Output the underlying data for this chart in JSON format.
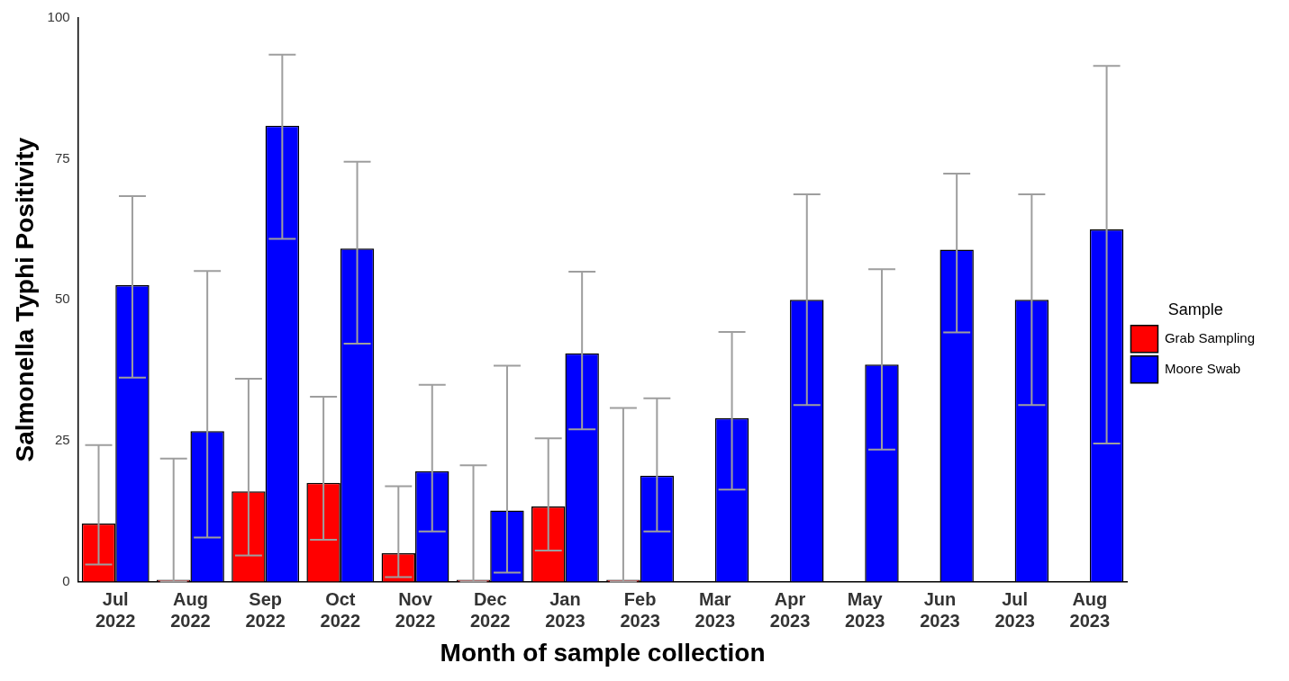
{
  "chart_data": {
    "type": "bar",
    "xlabel": "Month of sample collection",
    "ylabel": "Salmonella Typhi Positivity",
    "legend_title": "Sample",
    "legend": "right",
    "grid": false,
    "categories": [
      "Jul 2022",
      "Aug 2022",
      "Sep 2022",
      "Oct 2022",
      "Nov 2022",
      "Dec 2022",
      "Jan 2023",
      "Feb 2023",
      "Mar 2023",
      "Apr 2023",
      "May 2023",
      "Jun 2023",
      "Jul 2023",
      "Aug 2023"
    ],
    "ylim": [
      0,
      100
    ],
    "yticks": [
      0,
      25,
      50,
      75,
      100
    ],
    "series": [
      {
        "name": "Grab Sampling",
        "color": "#ff0000",
        "values": [
          10.3,
          0,
          16,
          17.5,
          5,
          0,
          13.3,
          0,
          null,
          null,
          null,
          null,
          null,
          null
        ],
        "errors": [
          [
            3,
            24.2
          ],
          [
            0,
            21.8
          ],
          [
            4.6,
            36
          ],
          [
            7.4,
            32.8
          ],
          [
            0.8,
            16.9
          ],
          [
            0,
            20.6
          ],
          [
            5.5,
            25.4
          ],
          [
            0,
            30.8
          ],
          null,
          null,
          null,
          null,
          null,
          null
        ]
      },
      {
        "name": "Moore Swab",
        "color": "#0000ff",
        "values": [
          52.6,
          26.7,
          80.9,
          59.1,
          19.6,
          12.6,
          40.5,
          18.8,
          29,
          50,
          38.5,
          58.9,
          50,
          62.5
        ],
        "errors": [
          [
            36.2,
            68.4
          ],
          [
            7.8,
            55.1
          ],
          [
            60.8,
            93.5
          ],
          [
            42.2,
            74.5
          ],
          [
            8.9,
            34.9
          ],
          [
            1.6,
            38.3
          ],
          [
            27,
            55
          ],
          [
            8.9,
            32.5
          ],
          [
            16.3,
            44.3
          ],
          [
            31.3,
            68.7
          ],
          [
            23.4,
            55.4
          ],
          [
            44.2,
            72.4
          ],
          [
            31.3,
            68.7
          ],
          [
            24.5,
            91.5
          ]
        ]
      }
    ]
  }
}
